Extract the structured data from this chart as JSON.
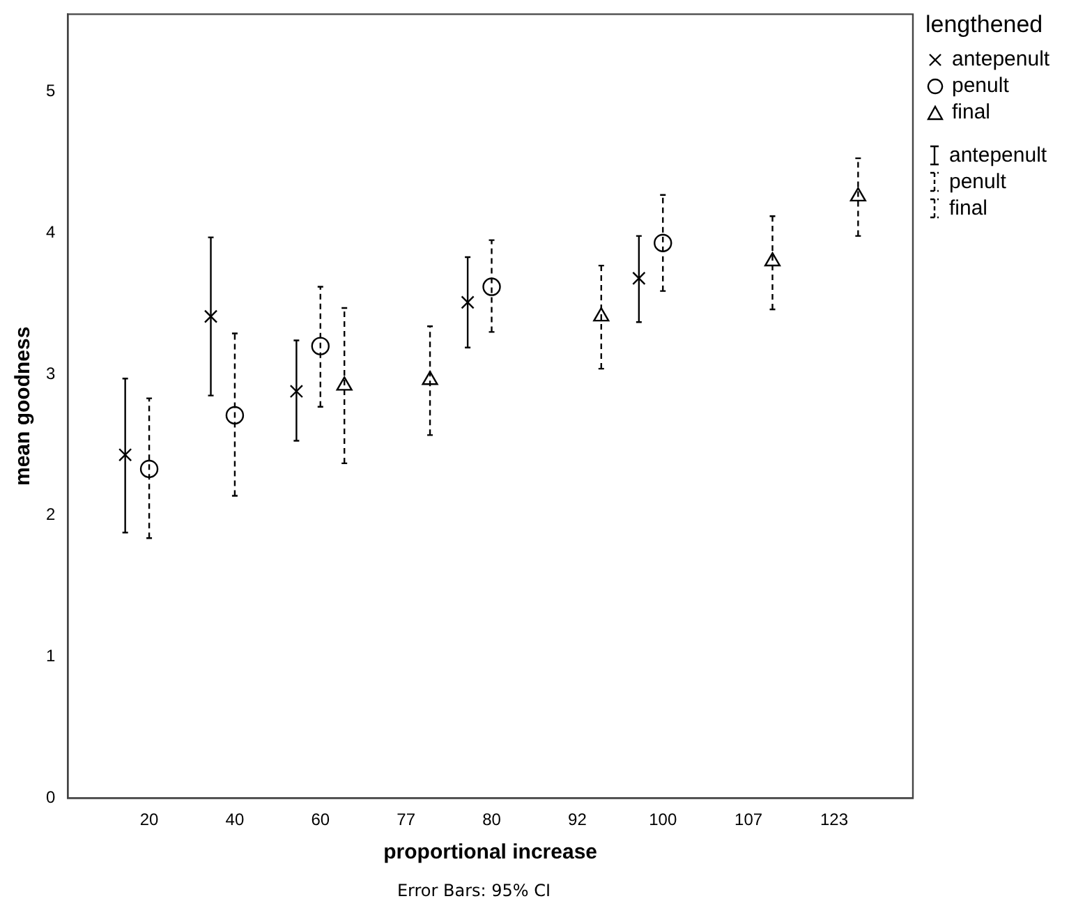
{
  "chart_data": {
    "type": "scatter",
    "xlabel": "proportional increase",
    "ylabel": "mean goodness",
    "legend_title": "lengthened",
    "categories": [
      "20",
      "40",
      "60",
      "77",
      "80",
      "92",
      "100",
      "107",
      "123"
    ],
    "series": [
      {
        "name": "antepenult",
        "color": "#000000",
        "marker": "cross",
        "line_style": "solid",
        "values": [
          2.43,
          3.41,
          2.88,
          null,
          3.51,
          null,
          3.68,
          null,
          null
        ],
        "errors": [
          [
            1.88,
            2.97
          ],
          [
            2.85,
            3.97
          ],
          [
            2.53,
            3.24
          ],
          null,
          [
            3.19,
            3.83
          ],
          null,
          [
            3.37,
            3.98
          ],
          null,
          null
        ]
      },
      {
        "name": "penult",
        "color": "#000000",
        "marker": "circle",
        "line_style": "dashed",
        "values": [
          2.33,
          2.71,
          3.2,
          null,
          3.62,
          null,
          3.93,
          null,
          null
        ],
        "errors": [
          [
            1.84,
            2.83
          ],
          [
            2.14,
            3.29
          ],
          [
            2.77,
            3.62
          ],
          null,
          [
            3.3,
            3.95
          ],
          null,
          [
            3.59,
            4.27
          ],
          null,
          null
        ]
      },
      {
        "name": "final",
        "color": "#000000",
        "marker": "triangle",
        "line_style": "dashed",
        "values": [
          null,
          null,
          2.92,
          2.96,
          null,
          3.41,
          null,
          3.8,
          4.26
        ],
        "errors": [
          null,
          null,
          [
            2.37,
            3.47
          ],
          [
            2.57,
            3.34
          ],
          null,
          [
            3.04,
            3.77
          ],
          null,
          [
            3.46,
            4.12
          ],
          [
            3.98,
            4.53
          ]
        ]
      }
    ],
    "ylim": [
      0,
      5.55
    ],
    "yticks": [
      0,
      1,
      2,
      3,
      4,
      5
    ],
    "grid": false,
    "legend": "right",
    "annotations": [
      "Error Bars: 95% CI"
    ]
  }
}
